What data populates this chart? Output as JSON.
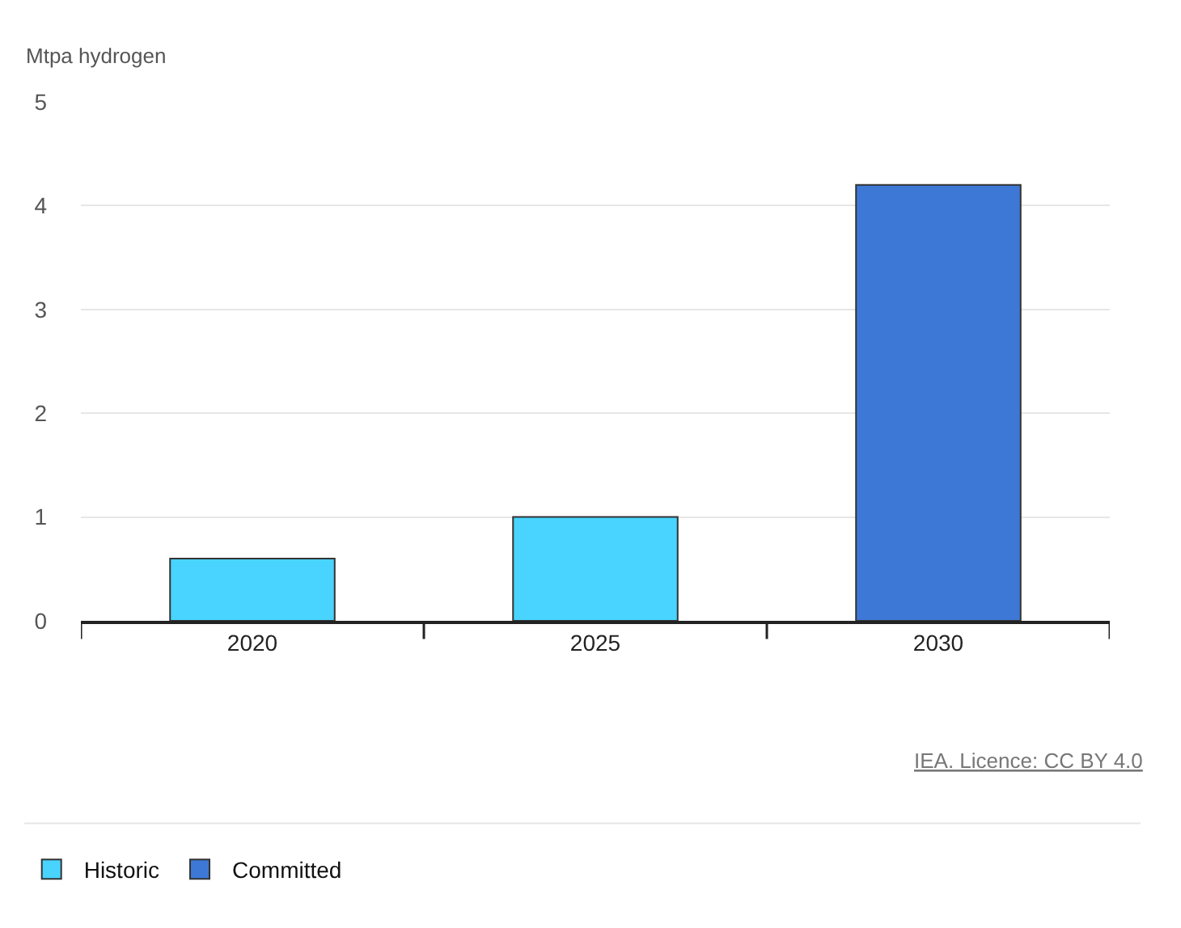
{
  "chart_data": {
    "type": "bar",
    "ylabel": "Mtpa hydrogen",
    "categories": [
      "2020",
      "2025",
      "2030"
    ],
    "series": [
      {
        "name": "Historic",
        "color": "#48d4ff",
        "values": [
          0.6,
          1.0,
          null
        ]
      },
      {
        "name": "Committed",
        "color": "#3d78d6",
        "values": [
          null,
          null,
          4.2
        ]
      }
    ],
    "ylim": [
      0,
      5
    ],
    "yticks": [
      0,
      1,
      2,
      3,
      4,
      5
    ],
    "grid": "y",
    "legend": "bottom",
    "annotations": [
      "IEA. Licence: CC BY 4.0"
    ]
  }
}
